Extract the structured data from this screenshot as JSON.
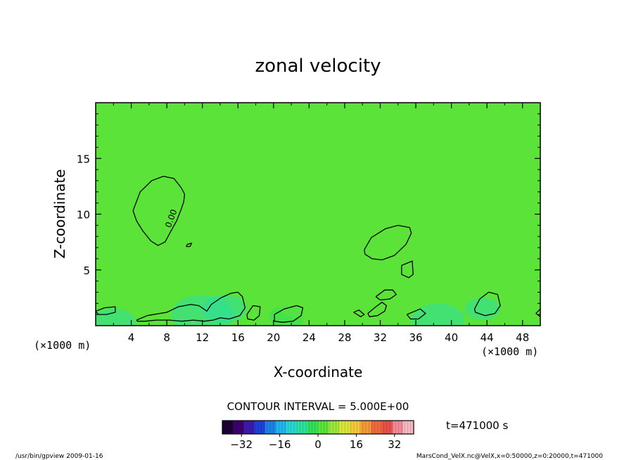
{
  "chart_data": {
    "type": "heatmap",
    "title": "zonal velocity",
    "xlabel": "X-coordinate",
    "ylabel": "Z-coordinate",
    "x_unit": "(×1000 m)",
    "x_unit_right": "(×1000 m)",
    "xlim": [
      0,
      50
    ],
    "ylim": [
      0,
      20
    ],
    "x_ticks": [
      4,
      8,
      12,
      16,
      20,
      24,
      28,
      32,
      36,
      40,
      44,
      48
    ],
    "y_ticks": [
      5,
      10,
      15
    ],
    "grid": false,
    "background_value": 0,
    "contour_interval_label": "CONTOUR INTERVAL = 5.000E+00",
    "contour_label": "0.00",
    "time_label": "t=471000 s",
    "colorbar": {
      "range": [
        -40,
        40
      ],
      "ticks": [
        -32,
        -16,
        0,
        16,
        32
      ],
      "colors": [
        "#1a0033",
        "#3b006e",
        "#3a1aa8",
        "#1f3fd6",
        "#1f7fe6",
        "#22b4ee",
        "#2ad6d0",
        "#2ee0a0",
        "#33e05a",
        "#5ce33a",
        "#9de63a",
        "#d8e63a",
        "#f2c93a",
        "#f29a3a",
        "#ef6a3a",
        "#e8504a",
        "#f08a98",
        "#f6b8c4"
      ]
    },
    "zero_contours": [
      {
        "x": [
          4.2,
          5.0,
          6.3,
          7.6,
          8.8,
          9.6,
          10.0,
          9.9,
          9.6,
          9.1,
          8.4,
          7.8,
          7.0,
          6.2,
          5.3,
          4.6,
          4.2,
          4.2
        ],
        "y": [
          10.3,
          12.0,
          13.0,
          13.4,
          13.2,
          12.4,
          11.8,
          11.1,
          10.4,
          9.4,
          8.4,
          7.5,
          7.2,
          7.6,
          8.5,
          9.4,
          10.3,
          10.3
        ]
      },
      {
        "x": [
          10.3,
          10.8,
          10.6,
          10.2,
          10.3
        ],
        "y": [
          7.3,
          7.4,
          7.1,
          7.1,
          7.3
        ]
      },
      {
        "x": [
          30.2,
          31.0,
          32.6,
          34.0,
          35.3,
          35.5,
          34.9,
          33.6,
          32.2,
          31.1,
          30.3,
          30.2
        ],
        "y": [
          6.8,
          7.9,
          8.7,
          9.0,
          8.8,
          8.3,
          7.3,
          6.3,
          5.9,
          6.0,
          6.4,
          6.8
        ]
      },
      {
        "x": [
          34.4,
          35.6,
          35.7,
          35.2,
          34.4,
          34.4
        ],
        "y": [
          5.4,
          5.8,
          4.6,
          4.3,
          4.6,
          5.4
        ]
      },
      {
        "x": [
          0.0,
          1.0,
          2.2,
          2.2,
          1.2,
          0.3,
          0.0
        ],
        "y": [
          1.3,
          1.6,
          1.7,
          1.2,
          1.0,
          1.0,
          1.3
        ]
      },
      {
        "x": [
          4.6,
          5.8,
          8.0,
          9.3,
          10.7,
          11.6,
          12.5,
          13.0,
          14.1,
          15.2,
          16.0,
          16.5,
          16.8,
          16.2,
          15.0,
          14.0,
          13.2,
          12.2,
          11.0,
          9.7,
          8.3,
          6.8,
          5.6,
          4.7,
          4.6
        ],
        "y": [
          0.5,
          0.9,
          1.2,
          1.7,
          1.9,
          1.8,
          1.3,
          1.9,
          2.5,
          2.9,
          3.0,
          2.6,
          1.6,
          0.9,
          0.6,
          0.7,
          0.5,
          0.4,
          0.5,
          0.4,
          0.5,
          0.5,
          0.4,
          0.4,
          0.5
        ]
      },
      {
        "x": [
          17.0,
          17.7,
          18.5,
          18.4,
          17.8,
          17.1,
          17.0
        ],
        "y": [
          1.0,
          1.8,
          1.7,
          0.9,
          0.5,
          0.6,
          1.0
        ]
      },
      {
        "x": [
          20.1,
          21.2,
          22.6,
          23.3,
          23.1,
          22.2,
          21.0,
          20.1,
          20.1
        ],
        "y": [
          1.0,
          1.5,
          1.8,
          1.6,
          0.9,
          0.4,
          0.3,
          0.4,
          1.0
        ]
      },
      {
        "x": [
          29.0,
          29.6,
          30.2,
          29.8,
          29.0
        ],
        "y": [
          1.2,
          1.4,
          1.0,
          0.8,
          1.2
        ]
      },
      {
        "x": [
          30.6,
          31.5,
          32.2,
          32.7,
          32.5,
          31.7,
          30.8,
          30.6
        ],
        "y": [
          1.1,
          1.7,
          2.1,
          1.8,
          1.3,
          0.9,
          0.8,
          1.1
        ]
      },
      {
        "x": [
          31.5,
          32.5,
          33.4,
          33.8,
          33.1,
          32.0,
          31.5
        ],
        "y": [
          2.6,
          3.2,
          3.2,
          2.8,
          2.4,
          2.3,
          2.6
        ]
      },
      {
        "x": [
          35.0,
          36.5,
          37.1,
          36.3,
          35.4,
          35.0
        ],
        "y": [
          1.0,
          1.5,
          1.1,
          0.6,
          0.6,
          1.0
        ]
      },
      {
        "x": [
          42.6,
          43.2,
          44.2,
          45.2,
          45.5,
          44.9,
          43.8,
          42.7,
          42.6
        ],
        "y": [
          1.5,
          2.4,
          3.0,
          2.8,
          1.8,
          1.1,
          0.9,
          1.2,
          1.5
        ]
      },
      {
        "x": [
          49.5,
          50.0,
          50.0,
          49.5
        ],
        "y": [
          1.1,
          1.5,
          0.8,
          1.1
        ]
      }
    ],
    "anomalies": [
      {
        "x": 12.0,
        "y": 1.0,
        "r": 3.5,
        "v": -6
      },
      {
        "x": 14.5,
        "y": 1.5,
        "r": 2.5,
        "v": -8
      },
      {
        "x": 38.5,
        "y": 0.5,
        "r": 3.0,
        "v": -6
      },
      {
        "x": 2.0,
        "y": 0.3,
        "r": 2.5,
        "v": -5
      },
      {
        "x": 21.5,
        "y": 0.8,
        "r": 2.0,
        "v": -4
      },
      {
        "x": 43.5,
        "y": 1.5,
        "r": 2.0,
        "v": -5
      },
      {
        "x": 24.0,
        "y": 2.5,
        "r": 4.0,
        "v": 4
      },
      {
        "x": 28.0,
        "y": 2.0,
        "r": 3.5,
        "v": 3
      },
      {
        "x": 8.0,
        "y": 9.0,
        "r": 5.0,
        "v": 3
      },
      {
        "x": 15.0,
        "y": 7.0,
        "r": 4.0,
        "v": 4
      }
    ]
  },
  "footer": {
    "left": "/usr/bin/gpview   2009-01-16",
    "right": "MarsCond_VelX.nc@VelX,x=0:50000,z=0:20000,t=471000"
  }
}
